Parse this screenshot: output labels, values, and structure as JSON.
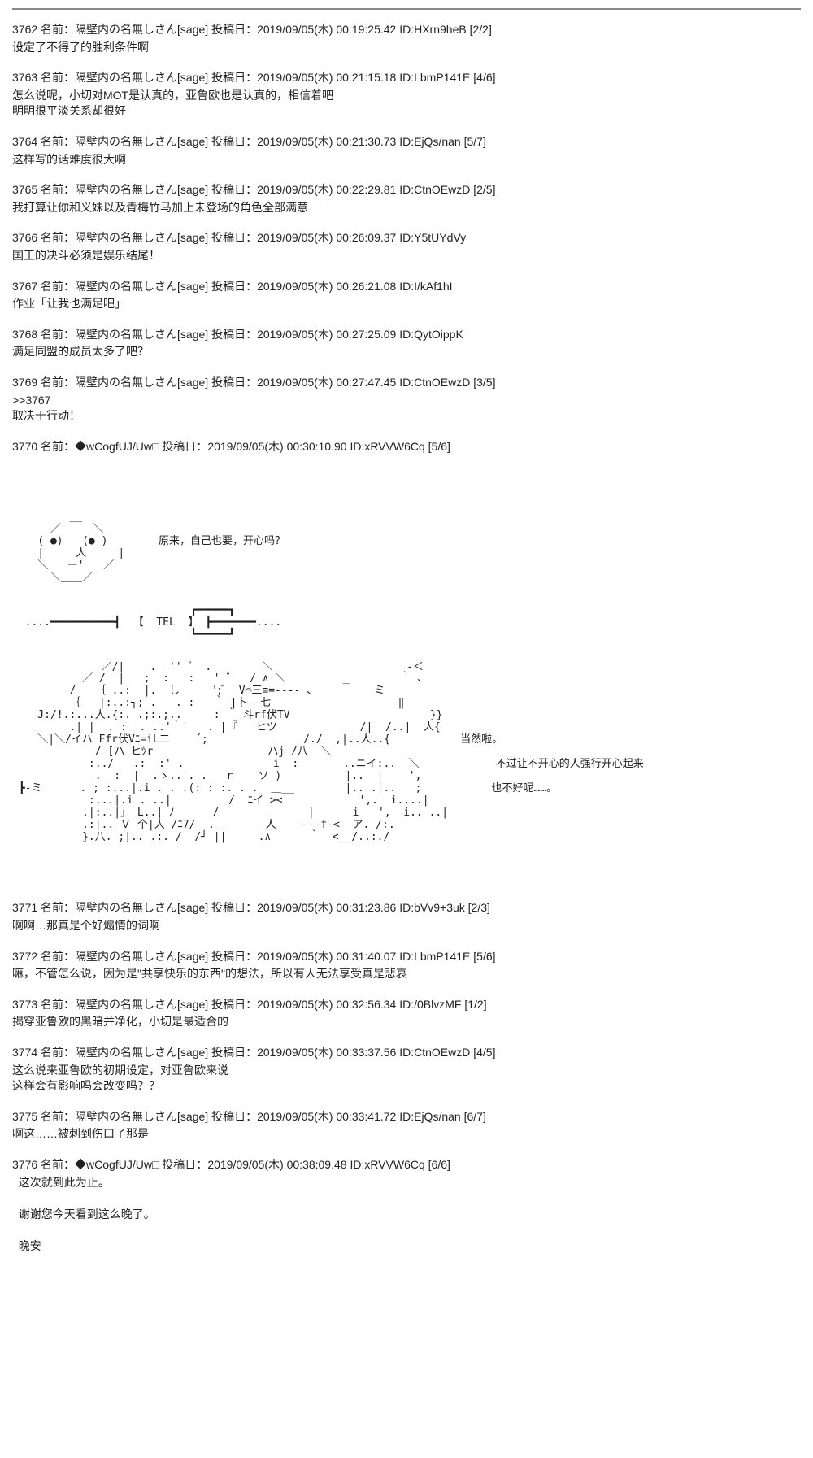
{
  "posts": [
    {
      "num": "3762",
      "name": "隔壁内の名無しさん",
      "tag": "[sage]",
      "date": "2019/09/05(木) 00:19:25.42",
      "id": "ID:HXrn9heB",
      "counter": "[2/2]",
      "body": "设定了不得了的胜利条件啊"
    },
    {
      "num": "3763",
      "name": "隔壁内の名無しさん",
      "tag": "[sage]",
      "date": "2019/09/05(木) 00:21:15.18",
      "id": "ID:LbmP141E",
      "counter": "[4/6]",
      "body": "怎么说呢，小切对MOT是认真的，亚鲁欧也是认真的，相信着吧\n明明很平淡关系却很好"
    },
    {
      "num": "3764",
      "name": "隔壁内の名無しさん",
      "tag": "[sage]",
      "date": "2019/09/05(木) 00:21:30.73",
      "id": "ID:EjQs/nan",
      "counter": "[5/7]",
      "body": "这样写的话难度很大啊"
    },
    {
      "num": "3765",
      "name": "隔壁内の名無しさん",
      "tag": "[sage]",
      "date": "2019/09/05(木) 00:22:29.81",
      "id": "ID:CtnOEwzD",
      "counter": "[2/5]",
      "body": "我打算让你和义妹以及青梅竹马加上未登场的角色全部满意"
    },
    {
      "num": "3766",
      "name": "隔壁内の名無しさん",
      "tag": "[sage]",
      "date": "2019/09/05(木) 00:26:09.37",
      "id": "ID:Y5tUYdVy",
      "counter": "",
      "body": "国王的决斗必须是娱乐结尾！"
    },
    {
      "num": "3767",
      "name": "隔壁内の名無しさん",
      "tag": "[sage]",
      "date": "2019/09/05(木) 00:26:21.08",
      "id": "ID:I/kAf1hI",
      "counter": "",
      "body": "作业「让我也满足吧」"
    },
    {
      "num": "3768",
      "name": "隔壁内の名無しさん",
      "tag": "[sage]",
      "date": "2019/09/05(木) 00:27:25.09",
      "id": "ID:QytOippK",
      "counter": "",
      "body": "满足同盟的成员太多了吧？"
    },
    {
      "num": "3769",
      "name": "隔壁内の名無しさん",
      "tag": "[sage]",
      "date": "2019/09/05(木) 00:27:47.45",
      "id": "ID:CtnOEwzD",
      "counter": "[3/5]",
      "body": ">>3767\n取决于行动！"
    },
    {
      "num": "3770",
      "name": "◆wCogfUJ/Uw",
      "tag": "□",
      "date": "2019/09/05(木) 00:30:10.90",
      "id": "ID:xRVVW6Cq",
      "counter": "[5/6]",
      "body": ""
    },
    {
      "num": "3771",
      "name": "隔壁内の名無しさん",
      "tag": "[sage]",
      "date": "2019/09/05(木) 00:31:23.86",
      "id": "ID:bVv9+3uk",
      "counter": "[2/3]",
      "body": "啊啊…那真是个好煽情的词啊"
    },
    {
      "num": "3772",
      "name": "隔壁内の名無しさん",
      "tag": "[sage]",
      "date": "2019/09/05(木) 00:31:40.07",
      "id": "ID:LbmP141E",
      "counter": "[5/6]",
      "body": "嘛，不管怎么说，因为是\"共享快乐的东西\"的想法，所以有人无法享受真是悲哀"
    },
    {
      "num": "3773",
      "name": "隔壁内の名無しさん",
      "tag": "[sage]",
      "date": "2019/09/05(木) 00:32:56.34",
      "id": "ID:/0BlvzMF",
      "counter": "[1/2]",
      "body": "揭穿亚鲁欧的黑暗并净化，小切是最适合的"
    },
    {
      "num": "3774",
      "name": "隔壁内の名無しさん",
      "tag": "[sage]",
      "date": "2019/09/05(木) 00:33:37.56",
      "id": "ID:CtnOEwzD",
      "counter": "[4/5]",
      "body": "这么说来亚鲁欧的初期设定，对亚鲁欧来说\n这样会有影响吗会改变吗？？"
    },
    {
      "num": "3775",
      "name": "隔壁内の名無しさん",
      "tag": "[sage]",
      "date": "2019/09/05(木) 00:33:41.72",
      "id": "ID:EjQs/nan",
      "counter": "[6/7]",
      "body": "啊这……被刺到伤口了那是"
    },
    {
      "num": "3776",
      "name": "◆wCogfUJ/Uw",
      "tag": "□",
      "date": "2019/09/05(木) 00:38:09.48",
      "id": "ID:xRVVW6Cq",
      "counter": "[6/6]",
      "body": "  这次就到此为止。\n\n  谢谢您今天看到这么晚了。\n\n  晚安"
    }
  ],
  "labels": {
    "name_prefix": "名前：",
    "date_prefix": "投稿日："
  },
  "aa": {
    "face": "         __\n      ／     ＼\n    ( ●)   (● )        原来，自己也要，开心吗？\n    |     人     |\n    ＼   ー'   ／\n      ＼＿＿／",
    "tel": "                            ┏━━━━━┓\n  ....━━━━━━━━━━┫  【  TEL  】 ┣━━━━━━━....\n                            ┗━━━━━┛",
    "scene": "              ／/|    .  '' ゛ .        ＼                     -＜\n           ／ /  |   ;  :  ':   ' ゛  / ∧ ＼         _        ｀ 、\n         /   ｛ ..:  |.  し     ';ﾞ  V⌒三≡=---- 、         ミ\n         ｛   |:..:┐; .   . :   ｀ |卜--七                    ‖\n    J:/!.:...人.{:. .;:.;..     : ｀ 斗rf伏TV                      }}\n         .| |  . :  . ..'｀'   . |『   ヒツ             /|  /..|  人{\n    ＼|＼/イハ Ffr伏Vﾆ=iL二    ´;               /./  ,|..人..{           当然啦。\n             / [ハ ヒﾂr                  ハj /八  ＼\n            :../   .:  :' .              i  :       ..ニイ:..  ＼            不过让不开心的人强行开心起来\n             .  :  |  .ゝ..'. .   r    ソ )          |..  |    ',\n ┣-ミ      . ; :...|.i . . .(: : :. . .  ＿__        |.. .|..   ;           也不好呢……。\n            :...|.i . ..|         /  ﾆイ ><            ',.  i....|\n           .|:..|」 L..| ﾉ      /              |      i   ',  i.. ..|\n           .:|.. Ｖ 个|人 /ﾆ7/  .        人    ---f-<  ア. /:.\n           }.八. ;|.. .:. /  /┘ ||     .∧      ｀  <__/..:./",
    "dialogue1": "原来，自己也要，开心吗？",
    "dialogue2": "当然啦。",
    "dialogue3": "不过让不开心的人强行开心起来",
    "dialogue4": "也不好呢……。"
  }
}
